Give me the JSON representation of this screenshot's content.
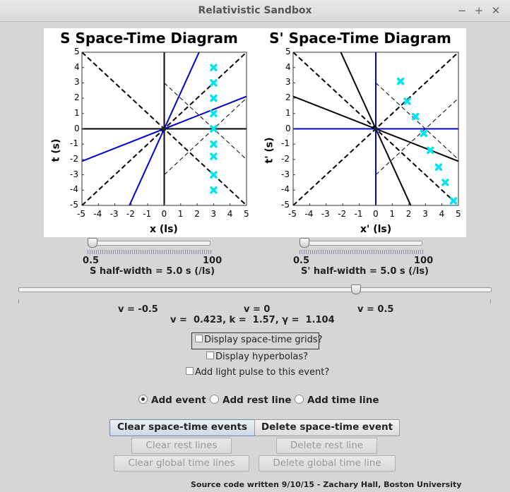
{
  "window": {
    "title": "Relativistic Sandbox",
    "minimize": "−",
    "maximize": "+",
    "close": "✕"
  },
  "diagrams": [
    {
      "title": "S Space-Time Diagram",
      "xlabel": "x (ls)",
      "ylabel": "t (s)",
      "ticks": [
        "-5",
        "-4",
        "-3",
        "-2",
        "-1",
        "0",
        "1",
        "2",
        "3",
        "4",
        "5"
      ],
      "lines": {
        "light": [
          [
            [
              -5,
              -5
            ],
            [
              5,
              5
            ]
          ],
          [
            [
              -5,
              5
            ],
            [
              5,
              -5
            ]
          ]
        ],
        "light_thin": [
          [
            [
              0,
              3
            ],
            [
              5,
              -2
            ]
          ],
          [
            [
              0,
              -3
            ],
            [
              5,
              2
            ]
          ]
        ],
        "axes_black": [
          [
            [
              -5,
              0
            ],
            [
              5,
              0
            ]
          ],
          [
            [
              0,
              -5
            ],
            [
              0,
              5
            ]
          ]
        ],
        "axes_blue": [
          [
            [
              -5,
              -2.115
            ],
            [
              5,
              2.115
            ]
          ],
          [
            [
              -2.115,
              -5
            ],
            [
              2.115,
              5
            ]
          ]
        ]
      },
      "events": [
        [
          3,
          4
        ],
        [
          3,
          3
        ],
        [
          3,
          2
        ],
        [
          3,
          1
        ],
        [
          3,
          0
        ],
        [
          3,
          -1
        ],
        [
          3,
          -1.8
        ],
        [
          3,
          -3
        ],
        [
          3,
          -4
        ]
      ]
    },
    {
      "title": "S' Space-Time Diagram",
      "xlabel": "x' (ls)",
      "ylabel": "t' (s)",
      "ticks": [
        "-5",
        "-4",
        "-3",
        "-2",
        "-1",
        "0",
        "1",
        "2",
        "3",
        "4",
        "5"
      ],
      "lines": {
        "light": [
          [
            [
              -5,
              -5
            ],
            [
              5,
              5
            ]
          ],
          [
            [
              -5,
              5
            ],
            [
              5,
              -5
            ]
          ]
        ],
        "light_thin": [
          [
            [
              0,
              3
            ],
            [
              5,
              -2
            ]
          ],
          [
            [
              0,
              -3
            ],
            [
              5,
              2
            ]
          ]
        ],
        "axes_black": [
          [
            [
              -5,
              2.115
            ],
            [
              5,
              -2.115
            ]
          ],
          [
            [
              -2.115,
              5
            ],
            [
              2.115,
              -5
            ]
          ]
        ],
        "axes_blue": [
          [
            [
              -5,
              0
            ],
            [
              5,
              0
            ]
          ],
          [
            [
              0,
              -5
            ],
            [
              0,
              5
            ]
          ]
        ]
      },
      "events": [
        [
          1.5,
          3.1
        ],
        [
          1.9,
          1.8
        ],
        [
          2.4,
          0.8
        ],
        [
          2.9,
          -0.3
        ],
        [
          3.3,
          -1.4
        ],
        [
          3.8,
          -2.5
        ],
        [
          4.2,
          -3.5
        ],
        [
          4.7,
          -4.7
        ]
      ]
    }
  ],
  "sliders": {
    "s_half": {
      "min": "0.5",
      "max": "100",
      "label": "S half-width = 5.0 s (/ls)",
      "value": 5.0
    },
    "sp_half": {
      "min": "0.5",
      "max": "100",
      "label": "S' half-width = 5.0 s (/ls)",
      "value": 5.0
    },
    "velocity": {
      "labels": [
        "v = -0.5",
        "v = 0",
        "v = 0.5"
      ],
      "value": 0.423
    }
  },
  "readout": "v =  0.423, k =  1.57, γ =  1.104",
  "checkboxes": {
    "grids": "Display space-time grids?",
    "hyperbolas": "Display hyperbolas?",
    "light_pulse": "Add light pulse to this event?"
  },
  "radios": {
    "add_event": "Add event",
    "add_rest_line": "Add rest line",
    "add_time_line": "Add time line",
    "selected": "add_event"
  },
  "buttons": {
    "clear_events": "Clear space-time events",
    "delete_event": "Delete space-time event",
    "clear_rest": "Clear rest lines",
    "delete_rest": "Delete rest line",
    "clear_global": "Clear global time lines",
    "delete_global": "Delete global time line"
  },
  "footer": "Source code written 9/10/15 - Zachary Hall, Boston University",
  "colors": {
    "blue_axis": "#0000cc",
    "event": "#00e5f0"
  }
}
